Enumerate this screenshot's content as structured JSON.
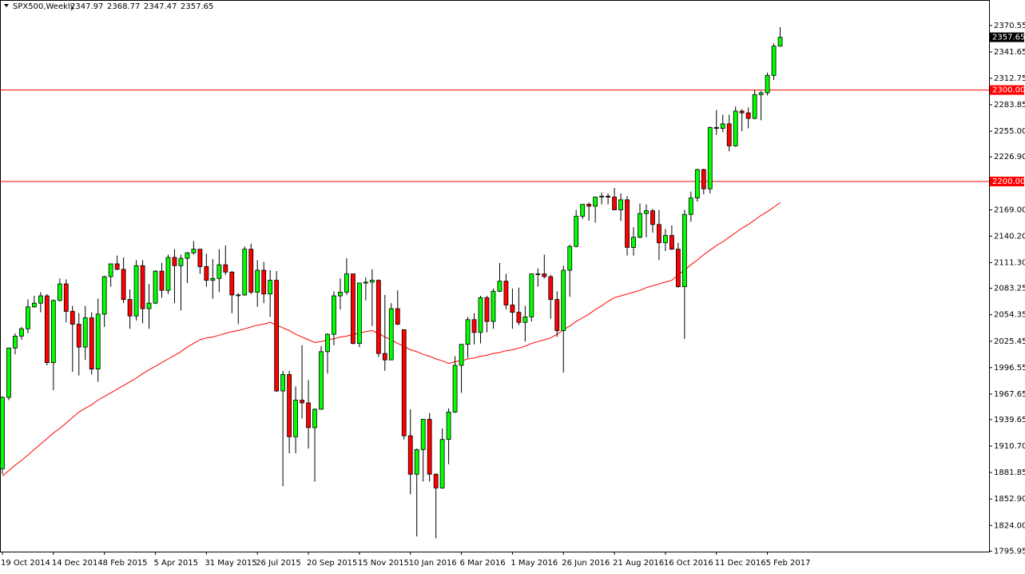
{
  "chart_data": {
    "type": "candlestick",
    "symbol": "SPX500,Weekly",
    "categories": [
      "19 Oct 2014",
      null,
      null,
      null,
      null,
      null,
      null,
      null,
      "14 Dec 2014",
      null,
      null,
      null,
      null,
      null,
      null,
      null,
      "8 Feb 2015",
      null,
      null,
      null,
      null,
      null,
      null,
      null,
      "5 Apr 2015",
      null,
      null,
      null,
      null,
      null,
      null,
      null,
      "31 May 2015",
      null,
      null,
      null,
      null,
      null,
      null,
      null,
      "26 Jul 2015",
      null,
      null,
      null,
      null,
      null,
      null,
      null,
      "20 Sep 2015",
      null,
      null,
      null,
      null,
      null,
      null,
      null,
      "15 Nov 2015",
      null,
      null,
      null,
      null,
      null,
      null,
      null,
      "10 Jan 2016",
      null,
      null,
      null,
      null,
      null,
      null,
      null,
      "6 Mar 2016",
      null,
      null,
      null,
      null,
      null,
      null,
      null,
      "1 May 2016",
      null,
      null,
      null,
      null,
      null,
      null,
      null,
      "26 Jun 2016",
      null,
      null,
      null,
      null,
      null,
      null,
      null,
      "21 Aug 2016",
      null,
      null,
      null,
      null,
      null,
      null,
      null,
      "16 Oct 2016",
      null,
      null,
      null,
      null,
      null,
      null,
      null,
      "11 Dec 2016",
      null,
      null,
      null,
      null,
      null,
      null,
      null,
      "5 Feb 2017",
      null,
      null
    ],
    "open": [
      1886,
      1964,
      2018,
      2031,
      2039,
      2063,
      2067,
      2075,
      2002,
      2070,
      2088,
      2058,
      2044,
      2019,
      2051,
      1995,
      2055,
      2096,
      2110,
      2104,
      2071,
      2053,
      2108,
      2061,
      2067,
      2102,
      2081,
      2117,
      2108,
      2116,
      2122,
      2126,
      2107,
      2092,
      2094,
      2109,
      2101,
      2076,
      2076,
      2126,
      2079,
      2103,
      2077,
      2092,
      1971,
      1989,
      1921,
      1961,
      1958,
      1931,
      1951,
      2014,
      2033,
      2075,
      2079,
      2099,
      2023,
      2089,
      2090,
      2092,
      2012,
      2005,
      2061,
      2038,
      1922,
      1880,
      1907,
      1940,
      1880,
      1865,
      1918,
      1948,
      1999,
      2022,
      2049,
      2035,
      2073,
      2047,
      2080,
      2091,
      2065,
      2057,
      2046,
      2052,
      2099,
      2099,
      2096,
      2071,
      2037,
      2103,
      2129,
      2162,
      2175,
      2173,
      2183,
      2184,
      2183,
      2169,
      2180,
      2128,
      2139,
      2165,
      2168,
      2153,
      2133,
      2141,
      2126,
      2085,
      2164,
      2182,
      2213,
      2192,
      2259,
      2258,
      2263,
      2239,
      2277,
      2275,
      2269,
      2295,
      2297,
      2316,
      2347.97
    ],
    "high": [
      1965,
      2018,
      2034,
      2041,
      2071,
      2075,
      2079,
      2077,
      2071,
      2094,
      2093,
      2064,
      2056,
      2064,
      2057,
      2072,
      2097,
      2110,
      2119,
      2117,
      2082,
      2114,
      2114,
      2088,
      2103,
      2111,
      2120,
      2126,
      2120,
      2123,
      2135,
      2126,
      2121,
      2115,
      2126,
      2130,
      2102,
      2078,
      2129,
      2132,
      2114,
      2112,
      2103,
      2102,
      1993,
      1993,
      1976,
      2021,
      1983,
      1952,
      2020,
      2034,
      2080,
      2094,
      2116,
      2099,
      2089,
      2095,
      2104,
      2093,
      2076,
      2067,
      2081,
      2038,
      1951,
      1908,
      1940,
      1947,
      1881,
      1930,
      1952,
      2009,
      2022,
      2052,
      2056,
      2075,
      2075,
      2083,
      2111,
      2099,
      2083,
      2084,
      2064,
      2094,
      2105,
      2120,
      2098,
      2080,
      2108,
      2131,
      2169,
      2175,
      2177,
      2183,
      2188,
      2187,
      2193,
      2187,
      2184,
      2150,
      2176,
      2175,
      2170,
      2169,
      2148,
      2152,
      2133,
      2169,
      2189,
      2214,
      2214,
      2260,
      2278,
      2273,
      2273,
      2282,
      2279,
      2281,
      2300,
      2299,
      2319,
      2351,
      2368.77
    ],
    "low": [
      1880,
      1961,
      2011,
      2027,
      2034,
      2062,
      2057,
      1999,
      1972,
      2069,
      2046,
      1992,
      1988,
      2005,
      1989,
      1981,
      2041,
      2085,
      2103,
      2067,
      2039,
      2048,
      2045,
      2039,
      2066,
      2073,
      2077,
      2067,
      2059,
      2089,
      2120,
      2099,
      2085,
      2072,
      2079,
      2098,
      2056,
      2044,
      2075,
      2077,
      2063,
      2067,
      2052,
      1970,
      1867,
      1903,
      1903,
      1941,
      1908,
      1872,
      1951,
      1990,
      2021,
      2060,
      2076,
      2022,
      2019,
      2070,
      2042,
      2008,
      1993,
      2005,
      2043,
      1918,
      1858,
      1812,
      1872,
      1872,
      1810,
      1864,
      1891,
      1947,
      1969,
      2007,
      2022,
      2023,
      2035,
      2039,
      2079,
      2060,
      2039,
      2043,
      2025,
      2047,
      2085,
      2094,
      2050,
      2030,
      1991,
      2074,
      2128,
      2159,
      2157,
      2155,
      2175,
      2175,
      2169,
      2157,
      2119,
      2119,
      2138,
      2139,
      2144,
      2114,
      2124,
      2125,
      2084,
      2028,
      2156,
      2178,
      2186,
      2187,
      2251,
      2254,
      2233,
      2238,
      2255,
      2258,
      2268,
      2267,
      2294,
      2311,
      2347.47
    ],
    "close": [
      1964,
      2018,
      2031,
      2039,
      2063,
      2067,
      2075,
      2002,
      2070,
      2088,
      2058,
      2044,
      2019,
      2051,
      1995,
      2055,
      2096,
      2110,
      2104,
      2071,
      2053,
      2108,
      2061,
      2067,
      2102,
      2081,
      2117,
      2108,
      2116,
      2122,
      2126,
      2107,
      2092,
      2094,
      2109,
      2101,
      2076,
      2076,
      2126,
      2079,
      2103,
      2077,
      2092,
      1971,
      1989,
      1921,
      1961,
      1958,
      1931,
      1951,
      2014,
      2033,
      2075,
      2079,
      2099,
      2023,
      2089,
      2090,
      2092,
      2012,
      2005,
      2061,
      2044,
      1922,
      1880,
      1907,
      1940,
      1880,
      1865,
      1918,
      1948,
      1999,
      2022,
      2049,
      2035,
      2073,
      2047,
      2080,
      2091,
      2065,
      2057,
      2046,
      2052,
      2099,
      2099,
      2096,
      2071,
      2037,
      2103,
      2129,
      2162,
      2175,
      2173,
      2183,
      2184,
      2183,
      2169,
      2180,
      2128,
      2139,
      2165,
      2168,
      2153,
      2133,
      2141,
      2126,
      2085,
      2164,
      2182,
      2213,
      2192,
      2259,
      2258,
      2263,
      2239,
      2277,
      2275,
      2269,
      2295,
      2297,
      2316,
      2348,
      2357.65
    ],
    "up_color": "#00ff00",
    "down_color": "#ff0000",
    "ma": {
      "color": "#ff0000",
      "values": [
        1878,
        1884,
        1890,
        1895,
        1901,
        1907,
        1913,
        1919,
        1925,
        1930,
        1936,
        1942,
        1948,
        1952,
        1956,
        1961,
        1965,
        1969,
        1973,
        1977,
        1981,
        1985,
        1990,
        1994,
        1998,
        2002,
        2006,
        2010,
        2014,
        2019,
        2023,
        2027,
        2029,
        2030,
        2032,
        2034,
        2036,
        2037,
        2039,
        2041,
        2043,
        2044,
        2046,
        2043,
        2040,
        2037,
        2033,
        2030,
        2027,
        2024,
        2025,
        2027,
        2028,
        2030,
        2031,
        2033,
        2034,
        2036,
        2037,
        2034,
        2030,
        2027,
        2023,
        2020,
        2016,
        2014,
        2011,
        2009,
        2006,
        2004,
        2001,
        2003,
        2004,
        2006,
        2007,
        2009,
        2010,
        2012,
        2013,
        2015,
        2016,
        2018,
        2020,
        2023,
        2025,
        2027,
        2029,
        2033,
        2038,
        2042,
        2047,
        2051,
        2055,
        2060,
        2064,
        2069,
        2073,
        2075,
        2077,
        2079,
        2081,
        2084,
        2086,
        2088,
        2090,
        2092,
        2098,
        2103,
        2109,
        2114,
        2120,
        2125,
        2130,
        2134,
        2139,
        2144,
        2149,
        2153,
        2158,
        2163,
        2167,
        2172,
        2177
      ]
    },
    "levels": [
      {
        "value": 2300,
        "label": "2300.00"
      },
      {
        "value": 2200,
        "label": "2200.00"
      }
    ],
    "level_color": "#ff0000",
    "ylim": [
      1795.4,
      2398.4
    ],
    "yticks": [
      2370.55,
      2341.65,
      2312.75,
      2283.85,
      {
        "value": 2255,
        "label": "2255.00"
      },
      {
        "value": 2226.9,
        "label": "2226.90"
      },
      {
        "value": 2169,
        "label": "2169.00"
      },
      {
        "value": 2140.2,
        "label": "2140.20"
      },
      {
        "value": 2111.3,
        "label": "2111.30"
      },
      2083.25,
      2054.35,
      2025.45,
      1996.55,
      1967.65,
      1939.65,
      {
        "value": 1910.7,
        "label": "1910.70"
      },
      1881.85,
      {
        "value": 1852.9,
        "label": "1852.90"
      },
      {
        "value": 1824,
        "label": "1824.00"
      },
      1795.95
    ]
  }
}
